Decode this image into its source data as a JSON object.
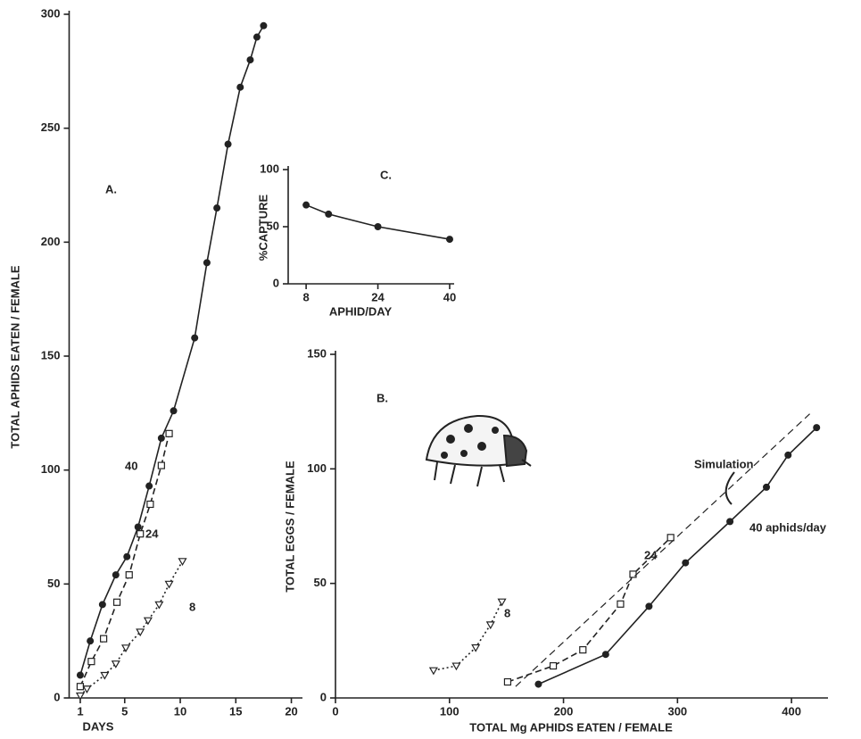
{
  "chart_data": [
    {
      "type": "line",
      "panel_label": "A.",
      "x_label": "DAYS",
      "y_label": "TOTAL APHIDS EATEN / FEMALE",
      "xlim": [
        0,
        21
      ],
      "xticks": [
        1,
        5,
        10,
        15,
        20
      ],
      "ylim": [
        0,
        300
      ],
      "yticks": [
        0,
        50,
        100,
        150,
        200,
        250,
        300
      ],
      "series": [
        {
          "name": "40",
          "color": "#222222",
          "marker": "circle-filled",
          "dash": "solid",
          "x": [
            1,
            1.9,
            3,
            4.2,
            5.2,
            6.2,
            7.2,
            8.3,
            9.4,
            11.3,
            12.4,
            13.3,
            14.3,
            15.4,
            16.3,
            16.9,
            17.5
          ],
          "values": [
            10,
            25,
            41,
            54,
            62,
            75,
            93,
            114,
            126,
            158,
            191,
            215,
            243,
            268,
            280,
            290,
            295
          ]
        },
        {
          "name": "24",
          "color": "#222222",
          "marker": "square-open",
          "dash": "dashed",
          "x": [
            1,
            2,
            3.1,
            4.3,
            5.4,
            6.4,
            7.3,
            8.3,
            9
          ],
          "values": [
            5,
            16,
            26,
            42,
            54,
            72,
            85,
            102,
            116
          ]
        },
        {
          "name": "8",
          "color": "#222222",
          "marker": "triangle-open",
          "dash": "dotted",
          "x": [
            1,
            1.6,
            3.2,
            4.2,
            5.1,
            6.4,
            7.1,
            8.1,
            9,
            10.2
          ],
          "values": [
            1,
            4,
            10,
            15,
            22,
            29,
            34,
            41,
            50,
            60
          ]
        }
      ]
    },
    {
      "type": "line",
      "panel_label": "B.",
      "x_label": "TOTAL Mg APHIDS EATEN / FEMALE",
      "y_label": "TOTAL EGGS / FEMALE",
      "xlim": [
        0,
        432
      ],
      "xticks": [
        0,
        100,
        200,
        300,
        400
      ],
      "ylim": [
        0,
        150
      ],
      "yticks": [
        0,
        50,
        100,
        150
      ],
      "series": [
        {
          "name": "40 aphids/day",
          "color": "#222222",
          "marker": "circle-filled",
          "dash": "solid",
          "x": [
            178,
            237,
            275,
            307,
            346,
            378,
            397,
            422
          ],
          "values": [
            6,
            19,
            40,
            59,
            77,
            92,
            106,
            118
          ]
        },
        {
          "name": "24",
          "color": "#222222",
          "marker": "square-open",
          "dash": "dashed",
          "x": [
            151,
            191,
            217,
            250,
            261,
            294
          ],
          "values": [
            7,
            14,
            21,
            41,
            54,
            70
          ]
        },
        {
          "name": "8",
          "color": "#222222",
          "marker": "triangle-open",
          "dash": "dotted",
          "x": [
            86,
            106,
            123,
            136,
            146
          ],
          "values": [
            12,
            14,
            22,
            32,
            42
          ]
        },
        {
          "name": "Simulation",
          "color": "#222222",
          "marker": "none",
          "dash": "dashed-thin",
          "x": [
            158,
            416
          ],
          "values": [
            5,
            124
          ]
        }
      ]
    },
    {
      "type": "line",
      "panel_label": "C.",
      "x_label": "APHID/DAY",
      "y_label": "%CAPTURE",
      "xlim": [
        4,
        41
      ],
      "xticks": [
        8,
        24,
        40
      ],
      "ylim": [
        0,
        100
      ],
      "yticks": [
        0,
        50,
        100
      ],
      "series": [
        {
          "name": null,
          "color": "#222222",
          "marker": "circle-filled",
          "dash": "solid",
          "x": [
            8,
            13,
            24,
            40
          ],
          "values": [
            69,
            61,
            50,
            39
          ]
        }
      ]
    }
  ]
}
